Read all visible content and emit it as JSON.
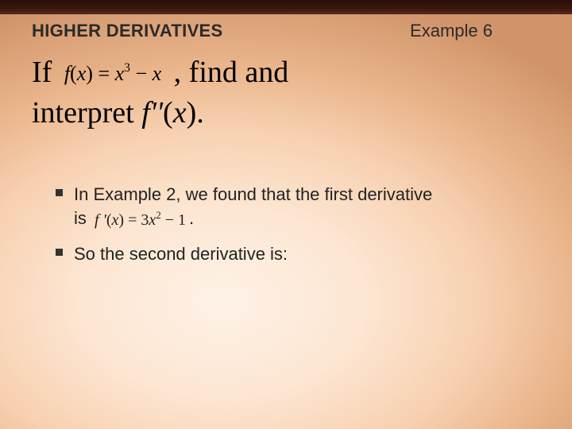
{
  "header": {
    "section_title": "HIGHER DERIVATIVES",
    "example_label": "Example 6"
  },
  "main": {
    "if_word": "If",
    "f_func": "f",
    "f_of_x_open": "(",
    "f_arg": "x",
    "f_of_x_close": ")",
    "eq_sign": " = ",
    "term1_base": "x",
    "term1_exp": "3",
    "minus": " − ",
    "term2": "x",
    "comma_find_and": ", find and",
    "interpret_word": "interpret ",
    "f2": "f''",
    "open2": "(",
    "arg2": "x",
    "close2": ")",
    "period": "."
  },
  "bullets": {
    "b1_a": "In Example 2, we found that the first derivative",
    "b1_b": "is ",
    "fprime": "f '",
    "fp_open": "(",
    "fp_arg": "x",
    "fp_close": ")",
    "fp_eq": " = 3",
    "fp_base": "x",
    "fp_exp": "2",
    "fp_tail": " − 1",
    "b1_c": ".",
    "b2": "So the second derivative is:"
  },
  "style": {
    "bg_center": "#fde6d2",
    "bg_edge": "#d1946a",
    "strip_color": "#2a0e08",
    "title_fontsize": 22,
    "main_fontsize": 38,
    "bullet_fontsize": 22,
    "bullet_marker": "square"
  }
}
